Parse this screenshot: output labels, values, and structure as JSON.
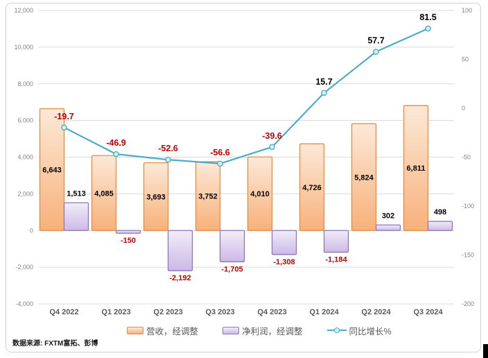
{
  "chart_data": {
    "type": "combo",
    "title": "",
    "categories": [
      "Q4 2022",
      "Q1 2023",
      "Q2 2023",
      "Q3 2023",
      "Q4 2023",
      "Q1 2024",
      "Q2 2024",
      "Q3 2024"
    ],
    "series": [
      {
        "name": "营收，经调整",
        "type": "bar",
        "axis": "left",
        "values": [
          6643,
          4085,
          3693,
          3752,
          4010,
          4726,
          5824,
          6811
        ],
        "labels": [
          "6,643",
          "4,085",
          "3,693",
          "3,752",
          "4,010",
          "4,726",
          "5,824",
          "6,811"
        ],
        "label_position": "center",
        "fill_top": "#FCE9D8",
        "fill_bottom": "#F7B17A",
        "border": "#E68B42"
      },
      {
        "name": "净利润，经调整",
        "type": "bar",
        "axis": "left",
        "values": [
          1513,
          -150,
          -2192,
          -1705,
          -1308,
          -1184,
          302,
          498
        ],
        "labels": [
          "1,513",
          "-150",
          "-2,192",
          "-1,705",
          "-1,308",
          "-1,184",
          "302",
          "498"
        ],
        "label_position": "outside",
        "fill_top": "#F1EDF9",
        "fill_bottom": "#CDB9E6",
        "border": "#8E76B8"
      },
      {
        "name": "同比增长%",
        "type": "line",
        "axis": "right",
        "values": [
          -19.7,
          -46.9,
          -52.6,
          -56.6,
          -39.6,
          15.7,
          57.7,
          81.5
        ],
        "labels": [
          "-19.7",
          "-46.9",
          "-52.6",
          "-56.6",
          "-39.6",
          "15.7",
          "57.7",
          "81.5"
        ],
        "color": "#4BACC6",
        "marker_fill": "#D6EEF6"
      }
    ],
    "left_axis": {
      "min": -4000,
      "max": 12000,
      "step": 2000,
      "ticks": [
        "12,000",
        "10,000",
        "8,000",
        "6,000",
        "4,000",
        "2,000",
        "0",
        "-2,000",
        "-4,000"
      ]
    },
    "right_axis": {
      "min": -200,
      "max": 100,
      "step": 50,
      "ticks": [
        "100",
        "50",
        "0",
        "-50",
        "-100",
        "-150",
        "-200"
      ]
    },
    "label_colors": {
      "positive": "#000000",
      "negative": "#C00000"
    },
    "grid_color": "#D9D9D9",
    "zero_line_color": "#C8C8C8",
    "axis_text_color": "#808080",
    "category_text_color": "#595959",
    "legend_position": "bottom",
    "grid": true
  },
  "legend": {
    "items": [
      {
        "label": "营收，经调整",
        "swatch": "bar-orange"
      },
      {
        "label": "净利润，经调整",
        "swatch": "bar-purple"
      },
      {
        "label": "同比增长%",
        "swatch": "line-teal"
      }
    ]
  },
  "source_note": "数据来源: FXTM富拓、彭博"
}
